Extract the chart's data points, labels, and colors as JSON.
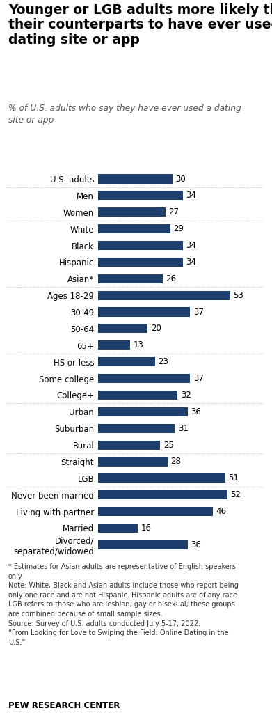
{
  "title": "Younger or LGB adults more likely than\ntheir counterparts to have ever used a\ndating site or app",
  "subtitle": "% of U.S. adults who say they have ever used a dating\nsite or app",
  "bar_color": "#1e3f6e",
  "background_color": "#ffffff",
  "categories": [
    "U.S. adults",
    "Men",
    "Women",
    "White",
    "Black",
    "Hispanic",
    "Asian*",
    "Ages 18-29",
    "30-49",
    "50-64",
    "65+",
    "HS or less",
    "Some college",
    "College+",
    "Urban",
    "Suburban",
    "Rural",
    "Straight",
    "LGB",
    "Never been married",
    "Living with partner",
    "Married",
    "Divorced/\nseparated/widowed"
  ],
  "values": [
    30,
    34,
    27,
    29,
    34,
    34,
    26,
    53,
    37,
    20,
    13,
    23,
    37,
    32,
    36,
    31,
    25,
    28,
    51,
    52,
    46,
    16,
    36
  ],
  "separator_after": [
    0,
    2,
    6,
    10,
    13,
    16,
    18
  ],
  "footnote": "* Estimates for Asian adults are representative of English speakers\nonly.\nNote: White, Black and Asian adults include those who report being\nonly one race and are not Hispanic. Hispanic adults are of any race.\nLGB refers to those who are lesbian, gay or bisexual; these groups\nare combined because of small sample sizes.\nSource: Survey of U.S. adults conducted July 5-17, 2022.\n“From Looking for Love to Swiping the Field: Online Dating in the\nU.S.”",
  "source_label": "PEW RESEARCH CENTER",
  "xlim": [
    0,
    60
  ],
  "bar_height": 0.55,
  "label_fontsize": 8.5,
  "value_fontsize": 8.5,
  "title_fontsize": 13.5,
  "subtitle_fontsize": 8.8,
  "footnote_fontsize": 7.0,
  "source_fontsize": 8.5
}
